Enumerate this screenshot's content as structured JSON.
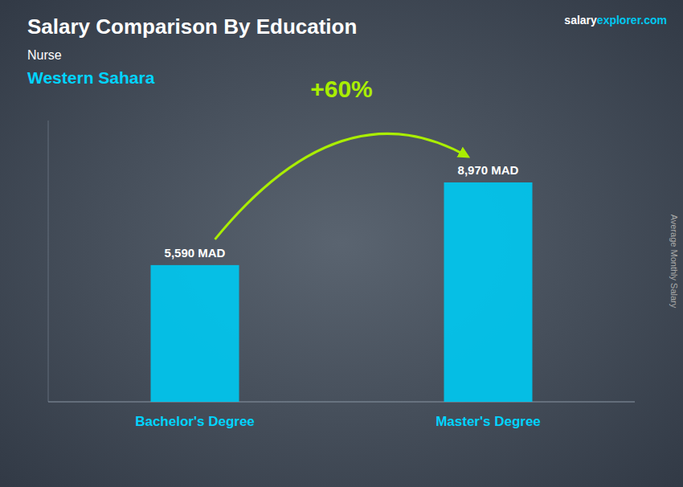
{
  "chart_data": {
    "type": "bar",
    "title": "Salary Comparison By Education",
    "subtitle": "Nurse",
    "y_label": "Average Monthly Salary",
    "annotations": [
      "Western Sahara",
      "+60%",
      "salary",
      "explorer.com"
    ],
    "categories": [
      "Bachelor's Degree",
      "Master's Degree"
    ],
    "values": [
      5590,
      8970
    ],
    "value_labels": [
      "5,590 MAD",
      "8,970 MAD"
    ],
    "color": "#00C8F0",
    "ylim": [
      0,
      11500
    ],
    "data_labels": true,
    "tick_labels": false,
    "grid": false
  }
}
